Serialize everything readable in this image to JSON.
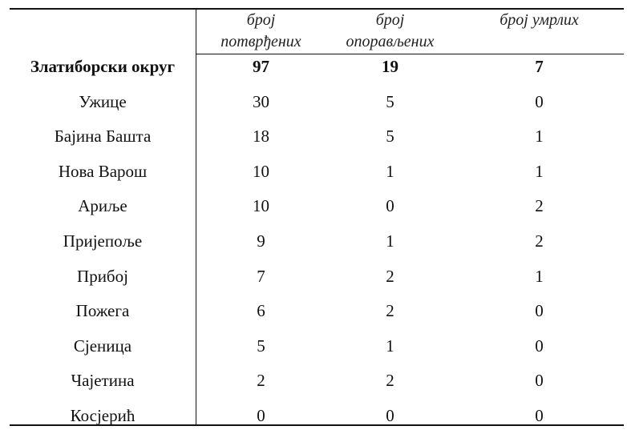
{
  "table": {
    "headers": [
      {
        "line1": "број",
        "line2": "потврђених"
      },
      {
        "line1": "број",
        "line2": "опорављених"
      },
      {
        "line1": "број умрлих",
        "line2": ""
      }
    ],
    "rows": [
      {
        "name": "Златиборски округ",
        "confirmed": "97",
        "recovered": "19",
        "deaths": "7",
        "bold": true
      },
      {
        "name": "Ужице",
        "confirmed": "30",
        "recovered": "5",
        "deaths": "0"
      },
      {
        "name": "Бајина Башта",
        "confirmed": "18",
        "recovered": "5",
        "deaths": "1"
      },
      {
        "name": "Нова Варош",
        "confirmed": "10",
        "recovered": "1",
        "deaths": "1"
      },
      {
        "name": "Ариље",
        "confirmed": "10",
        "recovered": "0",
        "deaths": "2"
      },
      {
        "name": "Пријепоље",
        "confirmed": "9",
        "recovered": "1",
        "deaths": "2"
      },
      {
        "name": "Прибој",
        "confirmed": "7",
        "recovered": "2",
        "deaths": "1"
      },
      {
        "name": "Пожега",
        "confirmed": "6",
        "recovered": "2",
        "deaths": "0"
      },
      {
        "name": "Сјеница",
        "confirmed": "5",
        "recovered": "1",
        "deaths": "0"
      },
      {
        "name": "Чајетина",
        "confirmed": "2",
        "recovered": "2",
        "deaths": "0"
      },
      {
        "name": "Косјерић",
        "confirmed": "0",
        "recovered": "0",
        "deaths": "0"
      }
    ]
  }
}
